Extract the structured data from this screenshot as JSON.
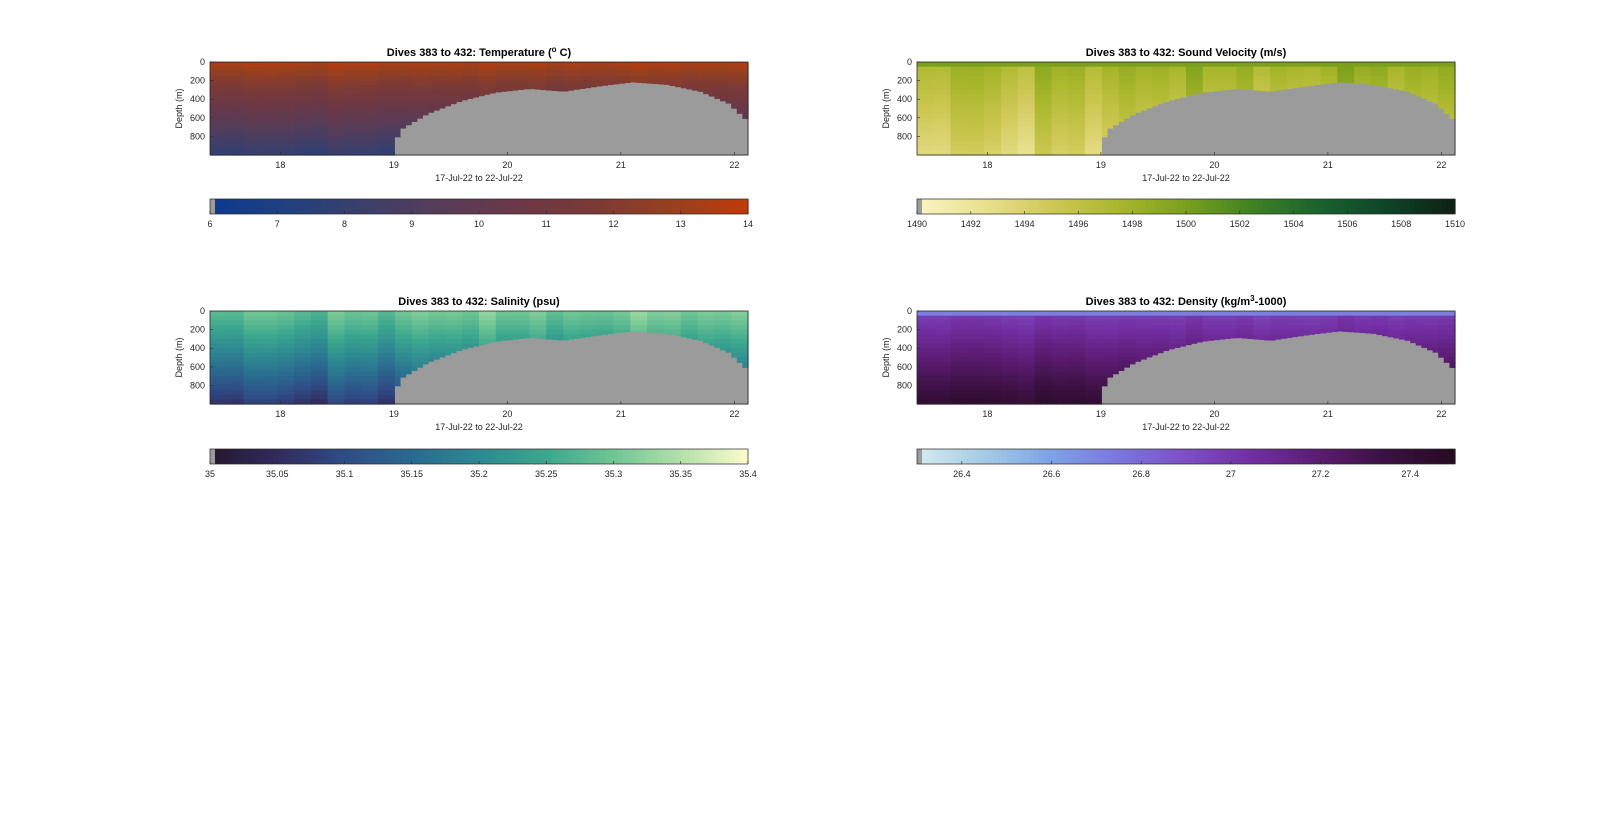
{
  "chart_data": [
    {
      "type": "heatmap",
      "title": "Dives 383 to 432: Temperature (° C)",
      "title_parts": [
        "Dives 383 to 432: Temperature (",
        "o",
        " C)"
      ],
      "xlabel": "17-Jul-22 to 22-Jul-22",
      "ylabel": "Depth (m)",
      "x_ticks": [
        "18",
        "19",
        "20",
        "21",
        "22"
      ],
      "y_ticks": [
        "0",
        "200",
        "400",
        "600",
        "800"
      ],
      "xlim": [
        17.38,
        22.12
      ],
      "ylim": [
        0,
        1000
      ],
      "y_reversed": true,
      "variable": "temp",
      "colormap": [
        "#0b3a8f",
        "#22407f",
        "#3c3f6a",
        "#573c58",
        "#6b3847",
        "#7b3a36",
        "#98401f",
        "#c13a0a"
      ],
      "nodata_color": "#9b9b9b",
      "colorbar": {
        "min": 6,
        "max": 14,
        "ticks": [
          "6",
          "7",
          "8",
          "9",
          "10",
          "11",
          "12",
          "13",
          "14"
        ]
      }
    },
    {
      "type": "heatmap",
      "title": "Dives 383 to 432: Sound Velocity (m/s)",
      "title_parts": [
        "Dives 383 to 432: Sound Velocity (m/s)"
      ],
      "xlabel": "17-Jul-22 to 22-Jul-22",
      "ylabel": "Depth (m)",
      "x_ticks": [
        "18",
        "19",
        "20",
        "21",
        "22"
      ],
      "y_ticks": [
        "0",
        "200",
        "400",
        "600",
        "800"
      ],
      "xlim": [
        17.38,
        22.12
      ],
      "ylim": [
        0,
        1000
      ],
      "y_reversed": true,
      "variable": "sv",
      "colormap": [
        "#fbf4c4",
        "#e9e08f",
        "#cfc855",
        "#a9b72b",
        "#7aa01c",
        "#3f8124",
        "#19622f",
        "#0e4429",
        "#0f1f12"
      ],
      "nodata_color": "#9b9b9b",
      "colorbar": {
        "min": 1490,
        "max": 1510,
        "ticks": [
          "1490",
          "1492",
          "1494",
          "1496",
          "1498",
          "1500",
          "1502",
          "1504",
          "1506",
          "1508",
          "1510"
        ]
      }
    },
    {
      "type": "heatmap",
      "title": "Dives 383 to 432: Salinity (psu)",
      "title_parts": [
        "Dives 383 to 432: Salinity (psu)"
      ],
      "xlabel": "17-Jul-22 to 22-Jul-22",
      "ylabel": "Depth (m)",
      "x_ticks": [
        "18",
        "19",
        "20",
        "21",
        "22"
      ],
      "y_ticks": [
        "0",
        "200",
        "400",
        "600",
        "800"
      ],
      "xlim": [
        17.38,
        22.12
      ],
      "ylim": [
        0,
        1000
      ],
      "y_reversed": true,
      "variable": "sal",
      "colormap": [
        "#26172e",
        "#322a5e",
        "#2f4c86",
        "#2a6a8f",
        "#2e8992",
        "#3ca78e",
        "#70c594",
        "#b3e0aa",
        "#fdfccb"
      ],
      "nodata_color": "#9b9b9b",
      "colorbar": {
        "min": 35,
        "max": 35.4,
        "ticks": [
          "35",
          "35.05",
          "35.1",
          "35.15",
          "35.2",
          "35.25",
          "35.3",
          "35.35",
          "35.4"
        ]
      }
    },
    {
      "type": "heatmap",
      "title": "Dives 383 to 432: Density (kg/m³-1000)",
      "title_parts": [
        "Dives 383 to 432: Density (kg/m",
        "3",
        "-1000)"
      ],
      "xlabel": "17-Jul-22 to 22-Jul-22",
      "ylabel": "Depth (m)",
      "x_ticks": [
        "18",
        "19",
        "20",
        "21",
        "22"
      ],
      "y_ticks": [
        "0",
        "200",
        "400",
        "600",
        "800"
      ],
      "xlim": [
        17.38,
        22.12
      ],
      "ylim": [
        0,
        1000
      ],
      "y_reversed": true,
      "variable": "dens",
      "colormap": [
        "#d6eaee",
        "#a3cbe6",
        "#7da2e5",
        "#7a77dd",
        "#7d4fc4",
        "#722ea1",
        "#5a1b70",
        "#3a1040",
        "#260a22"
      ],
      "nodata_color": "#9b9b9b",
      "colorbar": {
        "min": 26.3,
        "max": 27.5,
        "ticks": [
          "26.4",
          "26.6",
          "26.8",
          "27",
          "27.2",
          "27.4"
        ]
      }
    }
  ]
}
